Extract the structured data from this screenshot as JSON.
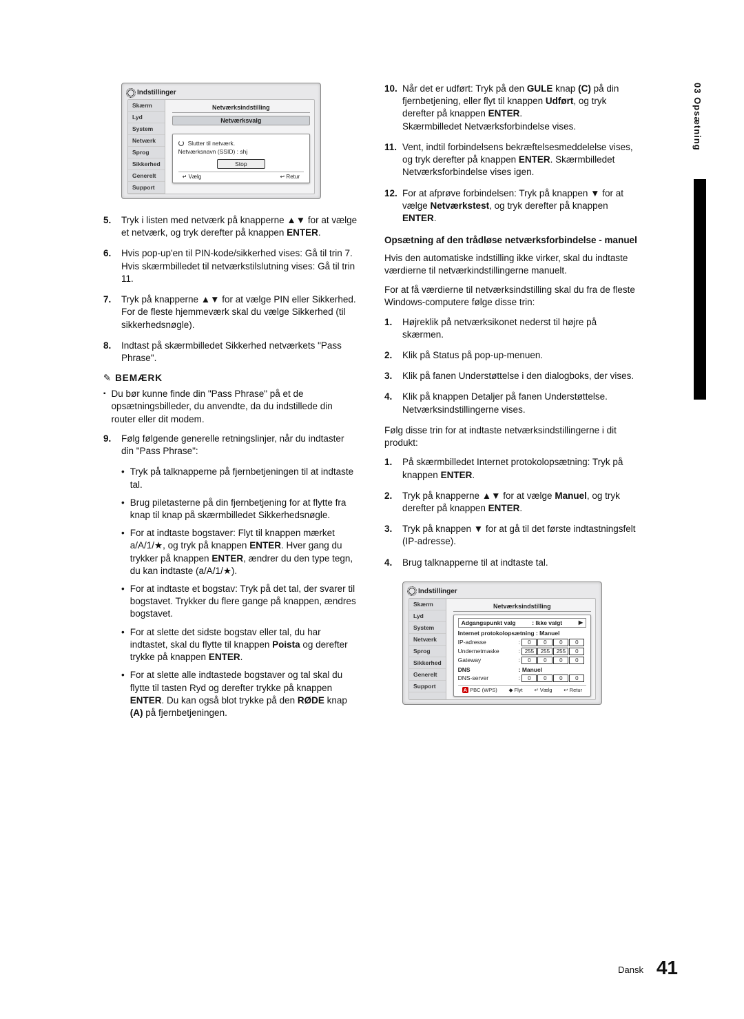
{
  "sideTab": "03  Opsætning",
  "footer": {
    "lang": "Dansk",
    "page": "41"
  },
  "device1": {
    "title": "Indstillinger",
    "side": [
      "Skærm",
      "Lyd",
      "System",
      "Netværk",
      "Sprog",
      "Sikkerhed",
      "Generelt",
      "Support"
    ],
    "heading": "Netværksindstilling",
    "sub": "Netværksvalg",
    "line1": "Slutter til netværk.",
    "line2": "Netværksnavn (SSID) : shj",
    "stop": "Stop",
    "footL": "↵ Vælg",
    "footR": "↩ Retur"
  },
  "left": {
    "items": [
      {
        "n": "5.",
        "t": "Tryk i listen med netværk på knapperne ▲▼ for at vælge et netværk, og tryk derefter på knappen <b>ENTER</b>."
      },
      {
        "n": "6.",
        "t": "Hvis pop-up'en til PIN-kode/sikkerhed vises: Gå til trin 7. Hvis skærmbilledet til netværkstilslutning vises: Gå til trin 11."
      },
      {
        "n": "7.",
        "t": "Tryk på knapperne ▲▼ for at vælge PIN eller Sikkerhed.<br>For de fleste hjemmeværk skal du vælge Sikkerhed (til sikkerhedsnøgle)."
      },
      {
        "n": "8.",
        "t": "Indtast på skærmbilledet Sikkerhed netværkets \"Pass Phrase\"."
      }
    ],
    "noteHead": "BEMÆRK",
    "note": "Du bør kunne finde din \"Pass Phrase\" på et de opsætningsbilleder, du anvendte, da du indstillede din router eller dit modem.",
    "nine": {
      "n": "9.",
      "t": "Følg følgende generelle retningslinjer, når du indtaster din \"Pass Phrase\":"
    },
    "bullets": [
      "Tryk på talknapperne på fjernbetjeningen til at indtaste tal.",
      "Brug piletasterne på din fjernbetjening for at flytte fra knap til knap på skærmbilledet Sikkerhedsnøgle.",
      "For at indtaste bogstaver: Flyt til knappen mærket a/A/1/★, og tryk på knappen <b>ENTER</b>. Hver gang du trykker på knappen <b>ENTER</b>, ændrer du den type tegn, du kan indtaste (a/A/1/★).",
      "For at indtaste et bogstav: Tryk på det tal, der svarer til bogstavet. Trykker du flere gange på knappen, ændres bogstavet.",
      "For at slette det sidste bogstav eller tal, du har indtastet, skal du flytte til knappen <b>Poista</b> og derefter trykke på knappen <b>ENTER</b>.",
      "For at slette alle indtastede bogstaver og tal skal du flytte til tasten Ryd og derefter trykke på knappen <b>ENTER</b>. Du kan også blot trykke på den <b>RØDE</b> knap <b>(A)</b> på fjernbetjeningen."
    ]
  },
  "right": {
    "items1": [
      {
        "n": "10.",
        "t": "Når det er udført: Tryk på den <b>GULE</b> knap <b>(C)</b> på din fjernbetjening, eller flyt til knappen <b>Udført</b>, og tryk derefter på knappen <b>ENTER</b>.<br>Skærmbilledet Netværksforbindelse vises."
      },
      {
        "n": "11.",
        "t": "Vent, indtil forbindelsens bekræftelsesmeddelelse vises, og tryk derefter på knappen <b>ENTER</b>. Skærmbilledet Netværksforbindelse vises igen."
      },
      {
        "n": "12.",
        "t": "For at afprøve forbindelsen: Tryk på knappen ▼ for at vælge <b>Netværkstest</b>, og tryk derefter på knappen <b>ENTER</b>."
      }
    ],
    "sectH": "Opsætning af den trådløse netværksforbindelse - manuel",
    "para1": "Hvis den automatiske indstilling ikke virker, skal du indtaste værdierne til netværkindstillingerne manuelt.",
    "para2": "For at få værdierne til netværksindstilling skal du fra de fleste Windows-computere følge disse trin:",
    "items2": [
      {
        "n": "1.",
        "t": "Højreklik på netværksikonet nederst til højre på skærmen."
      },
      {
        "n": "2.",
        "t": "Klik på Status på pop-up-menuen."
      },
      {
        "n": "3.",
        "t": "Klik på fanen Understøttelse i den dialogboks, der vises."
      },
      {
        "n": "4.",
        "t": "Klik på knappen Detaljer på fanen Understøttelse.<br>Netværksindstillingerne vises."
      }
    ],
    "para3": "Følg disse trin for at indtaste netværksindstillingerne i dit produkt:",
    "items3": [
      {
        "n": "1.",
        "t": "På skærmbilledet Internet protokolopsætning: Tryk på knappen <b>ENTER</b>."
      },
      {
        "n": "2.",
        "t": "Tryk på knapperne ▲▼ for at vælge <b>Manuel</b>, og tryk derefter på knappen <b>ENTER</b>."
      },
      {
        "n": "3.",
        "t": "Tryk på knappen ▼ for at gå til det første indtastningsfelt (IP-adresse)."
      },
      {
        "n": "4.",
        "t": "Brug talknapperne til at indtaste tal."
      }
    ]
  },
  "device2": {
    "title": "Indstillinger",
    "side": [
      "Skærm",
      "Lyd",
      "System",
      "Netværk",
      "Sprog",
      "Sikkerhed",
      "Generelt",
      "Support"
    ],
    "heading": "Netværksindstilling",
    "apLabel": "Adgangspunkt valg",
    "apVal": ": Ikke valgt",
    "protoLabel": "Internet protokolopsætning : Manuel",
    "rows": [
      {
        "label": "IP-adresse",
        "vals": [
          "0",
          "0",
          "0",
          "0"
        ]
      },
      {
        "label": "Undernetmaske",
        "vals": [
          "255",
          "255",
          "255",
          "0"
        ]
      },
      {
        "label": "Gateway",
        "vals": [
          "0",
          "0",
          "0",
          "0"
        ]
      }
    ],
    "dnsLabel": "DNS",
    "dnsVal": ": Manuel",
    "dnsServer": {
      "label": "DNS-server",
      "vals": [
        "0",
        "0",
        "0",
        "0"
      ]
    },
    "footer": [
      "A PBC (WPS)",
      "◆ Flyt",
      "↵ Vælg",
      "↩ Retur"
    ]
  }
}
